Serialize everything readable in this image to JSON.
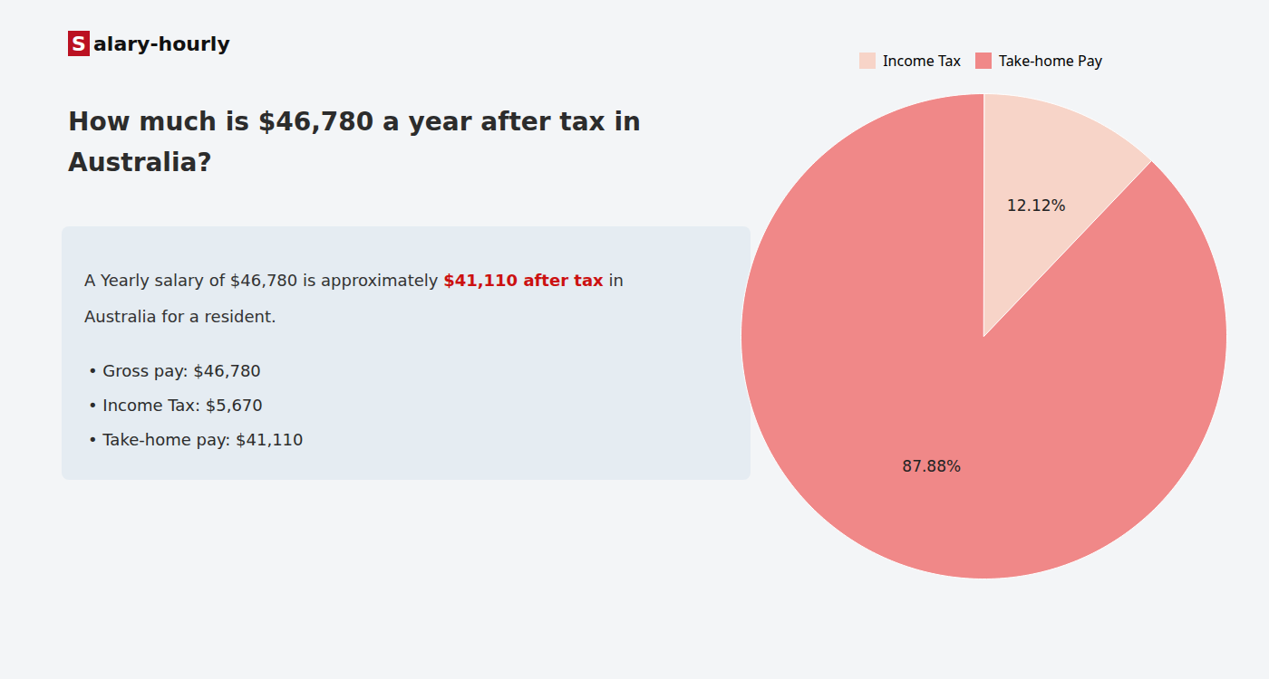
{
  "chart_data": {
    "type": "pie",
    "title": "How much is $46,780 a year after tax in Australia?",
    "categories": [
      "Income Tax",
      "Take-home Pay"
    ],
    "values": [
      12.12,
      87.88
    ],
    "value_labels": [
      "12.12%",
      "87.88%"
    ],
    "colors": [
      "#f7d4c8",
      "#f08888"
    ],
    "data_labels": true,
    "legend": "top",
    "annotations": {
      "logo": [
        {
          "text": "S",
          "color": "#bb1122"
        },
        {
          "text": "alary-hourly"
        }
      ],
      "info": [
        [
          {
            "text": "A Yearly salary of $46,780 is approximately "
          },
          {
            "text": "$41,110 after tax",
            "color": "#cc1111"
          },
          {
            "text": " in"
          }
        ],
        [
          {
            "text": "Australia for a resident."
          }
        ]
      ],
      "bullets": [
        "• Gross pay: $46,780",
        "• Income Tax: $5,670",
        "• Take-home pay: $41,110"
      ]
    }
  }
}
